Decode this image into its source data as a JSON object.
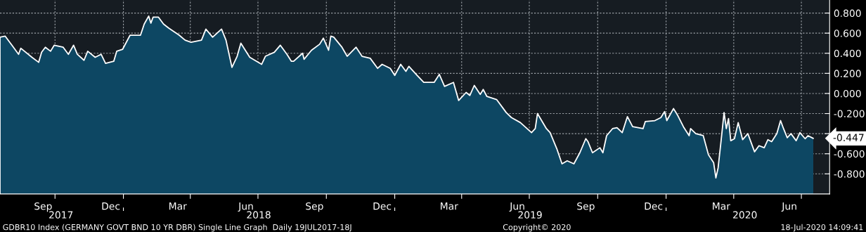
{
  "chart_data": {
    "type": "area",
    "x": [
      "2017-07-19",
      "2017-07-26",
      "2017-08-04",
      "2017-08-13",
      "2017-08-16",
      "2017-08-31",
      "2017-09-09",
      "2017-09-13",
      "2017-09-18",
      "2017-09-25",
      "2017-09-30",
      "2017-10-12",
      "2017-10-19",
      "2017-10-26",
      "2017-10-31",
      "2017-11-09",
      "2017-11-14",
      "2017-11-24",
      "2017-12-02",
      "2017-12-08",
      "2017-12-19",
      "2017-12-23",
      "2017-12-31",
      "2018-01-10",
      "2018-01-24",
      "2018-01-29",
      "2018-02-04",
      "2018-02-07",
      "2018-02-10",
      "2018-02-17",
      "2018-02-24",
      "2018-03-03",
      "2018-03-17",
      "2018-03-25",
      "2018-04-02",
      "2018-04-16",
      "2018-04-22",
      "2018-05-01",
      "2018-05-13",
      "2018-05-19",
      "2018-05-27",
      "2018-06-03",
      "2018-06-08",
      "2018-06-20",
      "2018-07-06",
      "2018-07-11",
      "2018-07-23",
      "2018-07-31",
      "2018-08-09",
      "2018-08-15",
      "2018-08-18",
      "2018-08-30",
      "2018-09-01",
      "2018-09-11",
      "2018-09-22",
      "2018-09-27",
      "2018-10-04",
      "2018-10-07",
      "2018-10-11",
      "2018-10-22",
      "2018-10-29",
      "2018-11-10",
      "2018-11-18",
      "2018-11-29",
      "2018-12-09",
      "2018-12-15",
      "2018-12-26",
      "2019-01-01",
      "2019-01-09",
      "2019-01-16",
      "2019-01-20",
      "2019-01-31",
      "2019-02-09",
      "2019-02-18",
      "2019-02-23",
      "2019-03-02",
      "2019-03-09",
      "2019-03-21",
      "2019-03-28",
      "2019-04-07",
      "2019-04-12",
      "2019-04-18",
      "2019-04-26",
      "2019-04-30",
      "2019-05-05",
      "2019-05-18",
      "2019-05-31",
      "2019-06-07",
      "2019-06-19",
      "2019-07-04",
      "2019-07-09",
      "2019-07-12",
      "2019-07-24",
      "2019-07-29",
      "2019-08-07",
      "2019-08-14",
      "2019-08-21",
      "2019-08-30",
      "2019-09-07",
      "2019-09-15",
      "2019-09-18",
      "2019-09-24",
      "2019-10-04",
      "2019-10-08",
      "2019-10-13",
      "2019-10-21",
      "2019-10-27",
      "2019-11-03",
      "2019-11-10",
      "2019-11-17",
      "2019-12-01",
      "2019-12-04",
      "2019-12-17",
      "2019-12-25",
      "2019-12-30",
      "2020-01-02",
      "2020-01-11",
      "2020-01-16",
      "2020-01-25",
      "2020-02-01",
      "2020-02-03",
      "2020-02-10",
      "2020-02-20",
      "2020-02-27",
      "2020-03-05",
      "2020-03-08",
      "2020-03-11",
      "2020-03-15",
      "2020-03-19",
      "2020-03-22",
      "2020-03-25",
      "2020-03-28",
      "2020-04-02",
      "2020-04-07",
      "2020-04-13",
      "2020-04-20",
      "2020-04-29",
      "2020-05-05",
      "2020-05-12",
      "2020-05-17",
      "2020-05-22",
      "2020-05-29",
      "2020-06-03",
      "2020-06-07",
      "2020-06-12",
      "2020-06-17",
      "2020-06-24",
      "2020-06-29",
      "2020-07-06",
      "2020-07-10",
      "2020-07-17"
    ],
    "series": [
      {
        "color": "#ffffff",
        "values": [
          0.56,
          0.57,
          0.48,
          0.39,
          0.45,
          0.36,
          0.31,
          0.41,
          0.46,
          0.42,
          0.48,
          0.46,
          0.39,
          0.48,
          0.39,
          0.33,
          0.42,
          0.36,
          0.39,
          0.3,
          0.32,
          0.42,
          0.44,
          0.58,
          0.58,
          0.69,
          0.77,
          0.7,
          0.76,
          0.76,
          0.69,
          0.65,
          0.58,
          0.53,
          0.51,
          0.53,
          0.64,
          0.56,
          0.64,
          0.53,
          0.26,
          0.37,
          0.5,
          0.36,
          0.29,
          0.37,
          0.41,
          0.48,
          0.39,
          0.32,
          0.32,
          0.4,
          0.34,
          0.43,
          0.49,
          0.55,
          0.43,
          0.57,
          0.56,
          0.46,
          0.37,
          0.46,
          0.37,
          0.35,
          0.25,
          0.29,
          0.25,
          0.18,
          0.29,
          0.22,
          0.27,
          0.18,
          0.11,
          0.11,
          0.11,
          0.19,
          0.07,
          0.11,
          -0.07,
          0.01,
          -0.02,
          0.08,
          -0.01,
          0.04,
          -0.03,
          -0.06,
          -0.19,
          -0.24,
          -0.29,
          -0.39,
          -0.35,
          -0.2,
          -0.35,
          -0.39,
          -0.55,
          -0.7,
          -0.67,
          -0.7,
          -0.59,
          -0.45,
          -0.48,
          -0.59,
          -0.54,
          -0.59,
          -0.42,
          -0.35,
          -0.34,
          -0.39,
          -0.23,
          -0.33,
          -0.35,
          -0.28,
          -0.27,
          -0.24,
          -0.18,
          -0.27,
          -0.15,
          -0.21,
          -0.34,
          -0.42,
          -0.35,
          -0.4,
          -0.42,
          -0.61,
          -0.69,
          -0.84,
          -0.74,
          -0.47,
          -0.19,
          -0.35,
          -0.25,
          -0.47,
          -0.45,
          -0.29,
          -0.46,
          -0.4,
          -0.58,
          -0.52,
          -0.54,
          -0.46,
          -0.48,
          -0.4,
          -0.27,
          -0.35,
          -0.44,
          -0.4,
          -0.47,
          -0.39,
          -0.45,
          -0.42,
          -0.447
        ]
      }
    ],
    "xlim": [
      "2017-07-19",
      "2020-08-08"
    ],
    "xticks": [
      {
        "value": "2017-09-15",
        "label": "Sep"
      },
      {
        "value": "2017-10-01",
        "label": null
      },
      {
        "value": "2017-12-15",
        "label": "Dec"
      },
      {
        "value": "2018-01-01",
        "label": null
      },
      {
        "value": "2018-03-15",
        "label": "Mar"
      },
      {
        "value": "2018-04-01",
        "label": null
      },
      {
        "value": "2018-06-15",
        "label": "Jun"
      },
      {
        "value": "2018-07-01",
        "label": null
      },
      {
        "value": "2018-09-15",
        "label": "Sep"
      },
      {
        "value": "2018-10-01",
        "label": null
      },
      {
        "value": "2018-12-15",
        "label": "Dec"
      },
      {
        "value": "2019-01-01",
        "label": null
      },
      {
        "value": "2019-03-15",
        "label": "Mar"
      },
      {
        "value": "2019-04-01",
        "label": null
      },
      {
        "value": "2019-06-15",
        "label": "Jun"
      },
      {
        "value": "2019-07-01",
        "label": null
      },
      {
        "value": "2019-09-15",
        "label": "Sep"
      },
      {
        "value": "2019-10-01",
        "label": null
      },
      {
        "value": "2019-12-15",
        "label": "Dec"
      },
      {
        "value": "2020-01-01",
        "label": null
      },
      {
        "value": "2020-03-15",
        "label": "Mar"
      },
      {
        "value": "2020-04-01",
        "label": null
      },
      {
        "value": "2020-06-15",
        "label": "Jun"
      },
      {
        "value": "2020-07-01",
        "label": null
      }
    ],
    "x2lim": [
      "2017-07-19",
      "2020-08-08"
    ],
    "x2ticks": [
      {
        "value": "2017-10-09",
        "label": "2017"
      },
      {
        "value": "2018-01-01",
        "label": null
      },
      {
        "value": "2018-07-02",
        "label": "2018"
      },
      {
        "value": "2019-01-01",
        "label": null
      },
      {
        "value": "2019-07-02",
        "label": "2019"
      },
      {
        "value": "2020-01-01",
        "label": null
      },
      {
        "value": "2020-04-16",
        "label": "2020"
      }
    ],
    "ylim": [
      -1.0,
      0.93
    ],
    "yticks": [
      {
        "value": -0.8,
        "label": "-0.800"
      },
      {
        "value": -0.6,
        "label": "-0.600"
      },
      {
        "value": -0.4,
        "label": null
      },
      {
        "value": -0.2,
        "label": "-0.200"
      },
      {
        "value": 0.0,
        "label": "0.000"
      },
      {
        "value": 0.2,
        "label": "0.200"
      },
      {
        "value": 0.4,
        "label": "0.400"
      },
      {
        "value": 0.6,
        "label": "0.600"
      },
      {
        "value": 0.8,
        "label": "0.800"
      }
    ],
    "grid": true,
    "annotations": [
      {
        "text": "-0.447",
        "x": "2020-07-17",
        "y": -0.447
      },
      "GDBR10 Index (GERMANY GOVT BND 10 YR DBR) Single Line Graph  Daily 19JUL2017-18J",
      "Copyright© 2020",
      "18-Jul-2020 14:09:41"
    ]
  }
}
